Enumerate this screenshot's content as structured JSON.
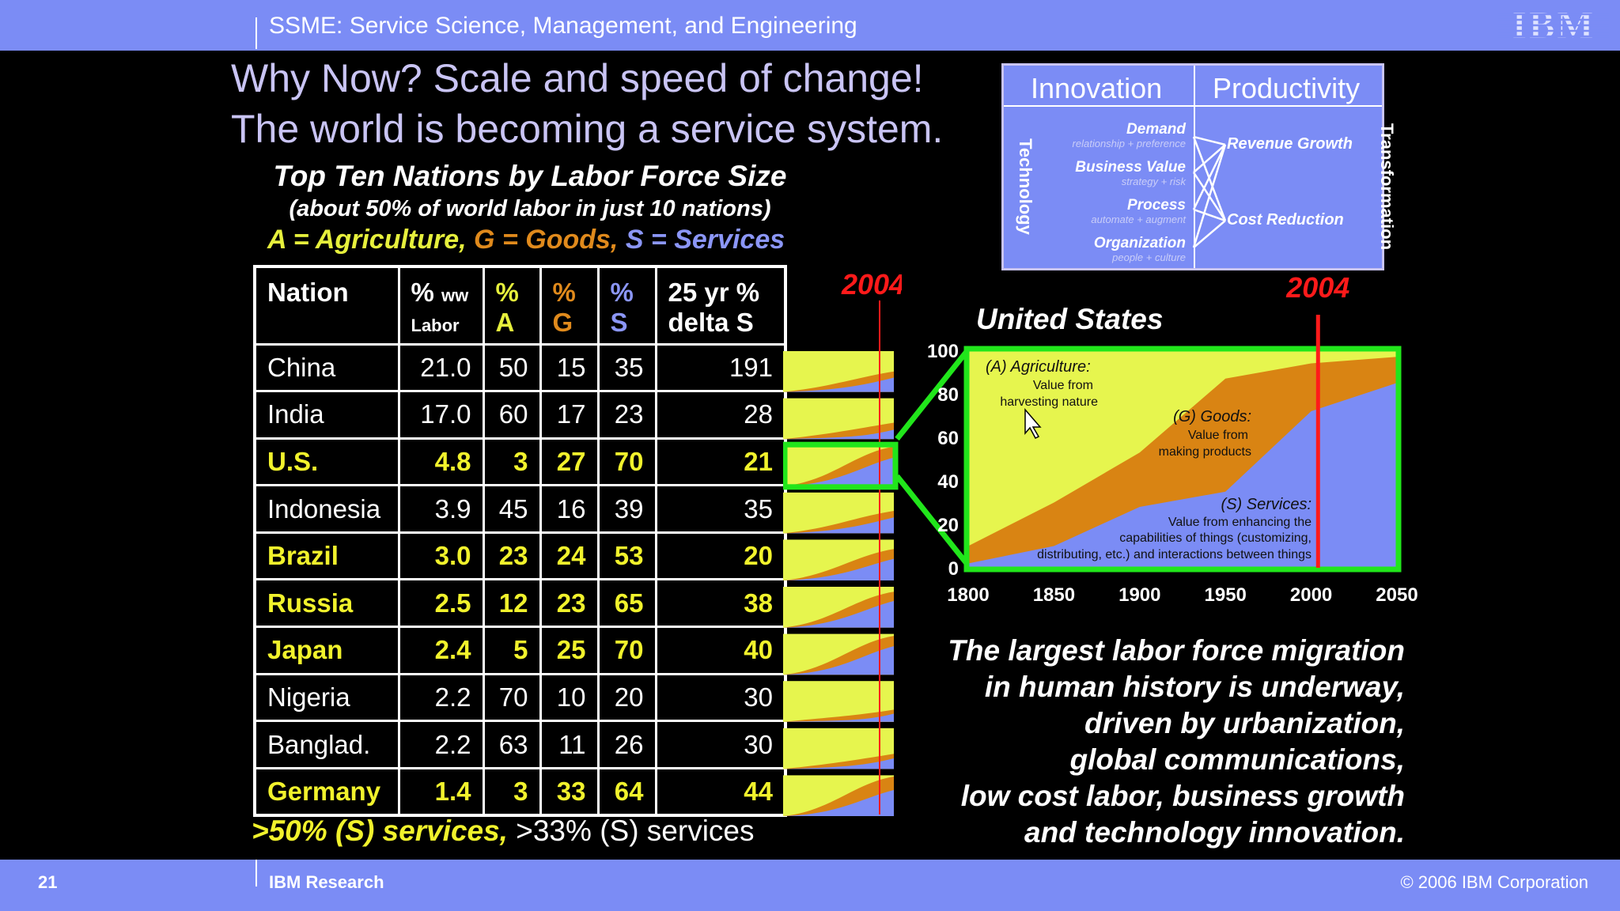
{
  "header": {
    "title": "SSME: Service Science, Management, and Engineering",
    "logo": "IBM"
  },
  "footer": {
    "slide_number": "21",
    "org": "IBM Research",
    "copyright": "© 2006 IBM Corporation"
  },
  "headline": {
    "line1": "Why Now? Scale and speed of change!",
    "line2": "The world is becoming a service system."
  },
  "table_section": {
    "title": "Top Ten Nations by Labor Force Size",
    "subtitle": "(about 50% of world labor in just 10 nations)",
    "legend": {
      "ag": "A = Agriculture",
      "sep1": ", ",
      "go": "G = Goods",
      "sep2": ", ",
      "se": "S = Services"
    },
    "headers": {
      "nation": "Nation",
      "ww_pct": "%",
      "ww_small": "ww",
      "ww_sub": "Labor",
      "a_pct": "%",
      "a_letter": "A",
      "g_pct": "%",
      "g_letter": "G",
      "s_pct": "%",
      "s_letter": "S",
      "delta1": "25 yr %",
      "delta2": "delta S"
    },
    "rows": [
      {
        "nation": "China",
        "ww": "21.0",
        "a": "50",
        "g": "15",
        "s": "35",
        "delta": "191",
        "highlight": false
      },
      {
        "nation": "India",
        "ww": "17.0",
        "a": "60",
        "g": "17",
        "s": "23",
        "delta": "28",
        "highlight": false
      },
      {
        "nation": "U.S.",
        "ww": "4.8",
        "a": "3",
        "g": "27",
        "s": "70",
        "delta": "21",
        "highlight": true
      },
      {
        "nation": "Indonesia",
        "ww": "3.9",
        "a": "45",
        "g": "16",
        "s": "39",
        "delta": "35",
        "highlight": false
      },
      {
        "nation": "Brazil",
        "ww": "3.0",
        "a": "23",
        "g": "24",
        "s": "53",
        "delta": "20",
        "highlight": true
      },
      {
        "nation": "Russia",
        "ww": "2.5",
        "a": "12",
        "g": "23",
        "s": "65",
        "delta": "38",
        "highlight": true
      },
      {
        "nation": "Japan",
        "ww": "2.4",
        "a": "5",
        "g": "25",
        "s": "70",
        "delta": "40",
        "highlight": true
      },
      {
        "nation": "Nigeria",
        "ww": "2.2",
        "a": "70",
        "g": "10",
        "s": "20",
        "delta": "30",
        "highlight": false
      },
      {
        "nation": "Banglad.",
        "ww": "2.2",
        "a": "63",
        "g": "11",
        "s": "26",
        "delta": "30",
        "highlight": false
      },
      {
        "nation": "Germany",
        "ww": "1.4",
        "a": "3",
        "g": "33",
        "s": "64",
        "delta": "44",
        "highlight": true
      }
    ],
    "footnote_bold": ">50% (S) services,",
    "footnote_normal": " >33% (S) services",
    "year_marker": "2004"
  },
  "innovation_box": {
    "left_header": "Innovation",
    "right_header": "Productivity",
    "left_vertical": "Technology",
    "right_vertical": "Transformation",
    "items": [
      {
        "label": "Demand",
        "sub": "relationship + preference"
      },
      {
        "label": "Business Value",
        "sub": "strategy + risk"
      },
      {
        "label": "Process",
        "sub": "automate + augment"
      },
      {
        "label": "Organization",
        "sub": "people + culture"
      }
    ],
    "outcomes": [
      "Revenue Growth",
      "Cost Reduction"
    ]
  },
  "chart_data": {
    "type": "area",
    "title": "United States",
    "marker_label": "2004",
    "marker_x": 2004,
    "x": [
      1800,
      1850,
      1900,
      1950,
      2000,
      2050
    ],
    "xlim": [
      1800,
      2050
    ],
    "ylim": [
      0,
      100
    ],
    "y_ticks": [
      0,
      20,
      40,
      60,
      80,
      100
    ],
    "x_ticks": [
      1800,
      1850,
      1900,
      1950,
      2000,
      2050
    ],
    "series": [
      {
        "name": "(S) Services:",
        "values": [
          2,
          10,
          28,
          35,
          72,
          85
        ]
      },
      {
        "name": "(G) Goods:",
        "values": [
          8,
          20,
          25,
          52,
          22,
          12
        ]
      },
      {
        "name": "(A) Agriculture:",
        "values": [
          90,
          70,
          47,
          13,
          6,
          3
        ]
      }
    ],
    "annotations": {
      "ag_title": "(A) Agriculture:",
      "ag_l1": "Value from",
      "ag_l2": "harvesting nature",
      "go_title": "(G) Goods:",
      "go_l1": "Value from",
      "go_l2": "making products",
      "se_title": "(S) Services:",
      "se_l1": "Value from enhancing the",
      "se_l2": "capabilities of things (customizing,",
      "se_l3": "distributing, etc.) and interactions between things"
    },
    "colors": {
      "agriculture": "#e6f54e",
      "goods": "#d98413",
      "services": "#7b8cf5",
      "frame": "#21e61b",
      "marker": "#ff1a1a"
    }
  },
  "migration_text": [
    "The largest labor force migration",
    "in human history is underway,",
    "driven by urbanization,",
    "global communications,",
    "low cost labor, business growth",
    "and technology innovation."
  ]
}
